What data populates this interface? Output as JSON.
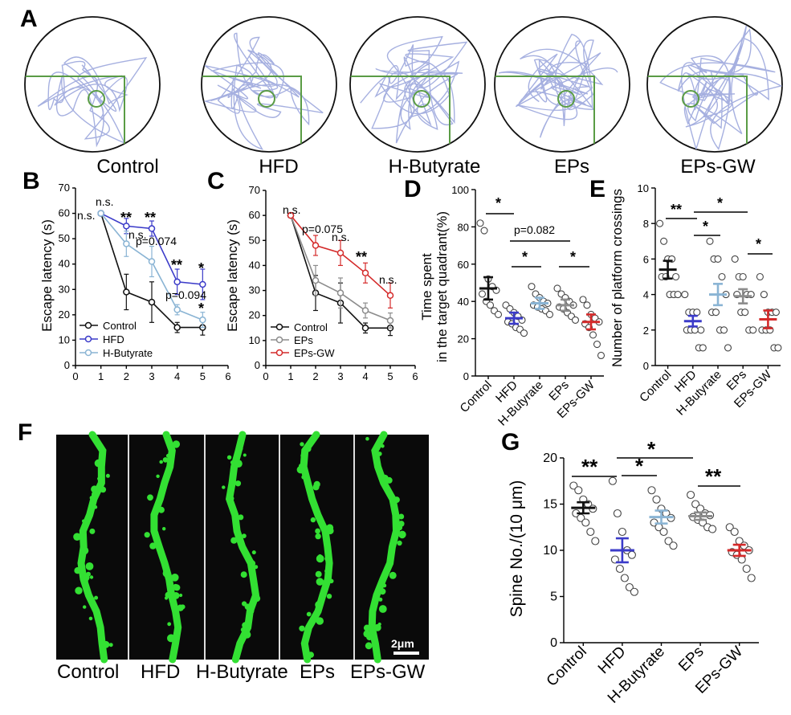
{
  "panels": {
    "A": {
      "letter": "A",
      "groups": [
        "Control",
        "HFD",
        "H-Butyrate",
        "EPs",
        "EPs-GW"
      ]
    },
    "B": {
      "letter": "B"
    },
    "C": {
      "letter": "C"
    },
    "D": {
      "letter": "D"
    },
    "E": {
      "letter": "E"
    },
    "F": {
      "letter": "F",
      "labels": [
        "Control",
        "HFD",
        "H-Butyrate",
        "EPs",
        "EPs-GW"
      ],
      "scale_bar": "2μm"
    },
    "G": {
      "letter": "G"
    }
  },
  "colors": {
    "Control": "#111111",
    "HFD": "#3b3bc9",
    "H-Butyrate": "#8ab4d4",
    "EPs": "#8c8c8c",
    "EPs-GW": "#d42a2a",
    "path": "#a6b0e0",
    "quadrant": "#5a9c45",
    "dendrite": "#33e033"
  },
  "chart_data": [
    {
      "id": "B",
      "type": "line",
      "ylabel": "Escape latency (s)",
      "xlim": [
        0,
        6
      ],
      "ylim": [
        0,
        70
      ],
      "xticks": [
        "0",
        "1",
        "2",
        "3",
        "4",
        "5",
        "6"
      ],
      "yticks": [
        "0",
        "10",
        "20",
        "30",
        "40",
        "50",
        "60",
        "70"
      ],
      "x": [
        1,
        2,
        3,
        4,
        5
      ],
      "series": [
        {
          "name": "Control",
          "values": [
            60,
            29,
            25,
            15,
            15
          ],
          "err": [
            0,
            7,
            8,
            2,
            3
          ]
        },
        {
          "name": "HFD",
          "values": [
            60,
            55,
            54,
            33,
            32
          ],
          "err": [
            0,
            3,
            3,
            5,
            6
          ]
        },
        {
          "name": "H-Butyrate",
          "values": [
            60,
            48,
            41,
            22,
            18
          ],
          "err": [
            0,
            5,
            6,
            2,
            3
          ]
        }
      ],
      "annotations": [
        "n.s.",
        "n.s.",
        "**",
        "**",
        "n.s.",
        "p=0.074",
        "**",
        "p=0.094",
        "*",
        "*"
      ]
    },
    {
      "id": "C",
      "type": "line",
      "ylabel": "Escape latency (s)",
      "xlim": [
        0,
        6
      ],
      "ylim": [
        0,
        70
      ],
      "xticks": [
        "0",
        "1",
        "2",
        "3",
        "4",
        "5",
        "6"
      ],
      "yticks": [
        "0",
        "10",
        "20",
        "30",
        "40",
        "50",
        "60",
        "70"
      ],
      "x": [
        1,
        2,
        3,
        4,
        5
      ],
      "series": [
        {
          "name": "Control",
          "values": [
            60,
            29,
            25,
            15,
            15
          ],
          "err": [
            0,
            7,
            8,
            2,
            3
          ]
        },
        {
          "name": "EPs",
          "values": [
            60,
            34,
            29,
            22,
            18
          ],
          "err": [
            0,
            6,
            6,
            3,
            3
          ]
        },
        {
          "name": "EPs-GW",
          "values": [
            60,
            48,
            45,
            37,
            28
          ],
          "err": [
            0,
            4,
            5,
            4,
            5
          ]
        }
      ],
      "annotations": [
        "n.s.",
        "p=0.075",
        "n.s.",
        "**",
        "n.s."
      ]
    },
    {
      "id": "D",
      "type": "scatter",
      "ylabel": [
        "Time spent",
        "in the target quadrant(%)"
      ],
      "ylim": [
        0,
        100
      ],
      "yticks": [
        "0",
        "20",
        "40",
        "60",
        "80",
        "100"
      ],
      "categories": [
        "Control",
        "HFD",
        "H-Butyrate",
        "EPs",
        "EPs-GW"
      ],
      "means": [
        47,
        31,
        39,
        38,
        29
      ],
      "sems": [
        6,
        3,
        3,
        3,
        4
      ],
      "points": [
        [
          82,
          78,
          52,
          48,
          46,
          44,
          40,
          38,
          35,
          33
        ],
        [
          38,
          36,
          34,
          32,
          30,
          29,
          28,
          26,
          25,
          23
        ],
        [
          48,
          44,
          42,
          40,
          39,
          38,
          37,
          36,
          35,
          33
        ],
        [
          47,
          44,
          42,
          40,
          38,
          37,
          36,
          34,
          32,
          30
        ],
        [
          41,
          38,
          33,
          31,
          29,
          28,
          26,
          22,
          17,
          11
        ]
      ],
      "comparisons": [
        {
          "label": "*"
        },
        {
          "label": "p=0.082"
        },
        {
          "label": "*"
        },
        {
          "label": "*"
        }
      ]
    },
    {
      "id": "E",
      "type": "scatter",
      "ylabel": "Number of platform crossings",
      "ylim": [
        0,
        10
      ],
      "yticks": [
        "0",
        "2",
        "4",
        "6",
        "8",
        "10"
      ],
      "categories": [
        "Control",
        "HFD",
        "H-Butyrate",
        "EPs",
        "EPs-GW"
      ],
      "means": [
        5.4,
        2.5,
        4.0,
        3.9,
        2.6
      ],
      "sems": [
        0.5,
        0.3,
        0.6,
        0.4,
        0.5
      ],
      "points": [
        [
          8,
          7,
          6,
          6,
          5,
          5,
          5,
          4,
          4,
          4
        ],
        [
          4,
          3,
          3,
          3,
          2,
          2,
          2,
          2,
          1,
          1
        ],
        [
          7,
          6,
          6,
          5,
          4,
          3,
          3,
          2,
          2,
          1
        ],
        [
          6,
          5,
          5,
          4,
          4,
          4,
          3,
          3,
          2,
          2
        ],
        [
          5,
          4,
          3,
          3,
          3,
          2,
          2,
          2,
          1,
          1
        ]
      ],
      "comparisons": [
        {
          "label": "**"
        },
        {
          "label": "*"
        },
        {
          "label": "*"
        },
        {
          "label": "*"
        }
      ]
    },
    {
      "id": "G",
      "type": "scatter",
      "ylabel": "Spine No./(10 μm)",
      "ylim": [
        0,
        20
      ],
      "yticks": [
        "0",
        "5",
        "10",
        "15",
        "20"
      ],
      "categories": [
        "Control",
        "HFD",
        "H-Butyrate",
        "EPs",
        "EPs-GW"
      ],
      "means": [
        14.6,
        10.0,
        13.6,
        13.7,
        10.0
      ],
      "sems": [
        0.6,
        1.3,
        0.7,
        0.4,
        0.6
      ],
      "points": [
        [
          17,
          16.5,
          15.5,
          15,
          14.5,
          14,
          13.5,
          13,
          12,
          11
        ],
        [
          17.5,
          14,
          12,
          10,
          9.5,
          9,
          8,
          7,
          6,
          5.5
        ],
        [
          16.5,
          15.5,
          14.5,
          14,
          13.5,
          13,
          12.5,
          12,
          11,
          10.5
        ],
        [
          16,
          15,
          14.5,
          14,
          13.8,
          13.6,
          13.3,
          13,
          12.5,
          12.3
        ],
        [
          12.5,
          12,
          11,
          10.5,
          10,
          9.8,
          9.5,
          9,
          8,
          7
        ]
      ],
      "comparisons": [
        {
          "label": "**"
        },
        {
          "label": "*"
        },
        {
          "label": "*"
        },
        {
          "label": "**"
        }
      ]
    }
  ]
}
